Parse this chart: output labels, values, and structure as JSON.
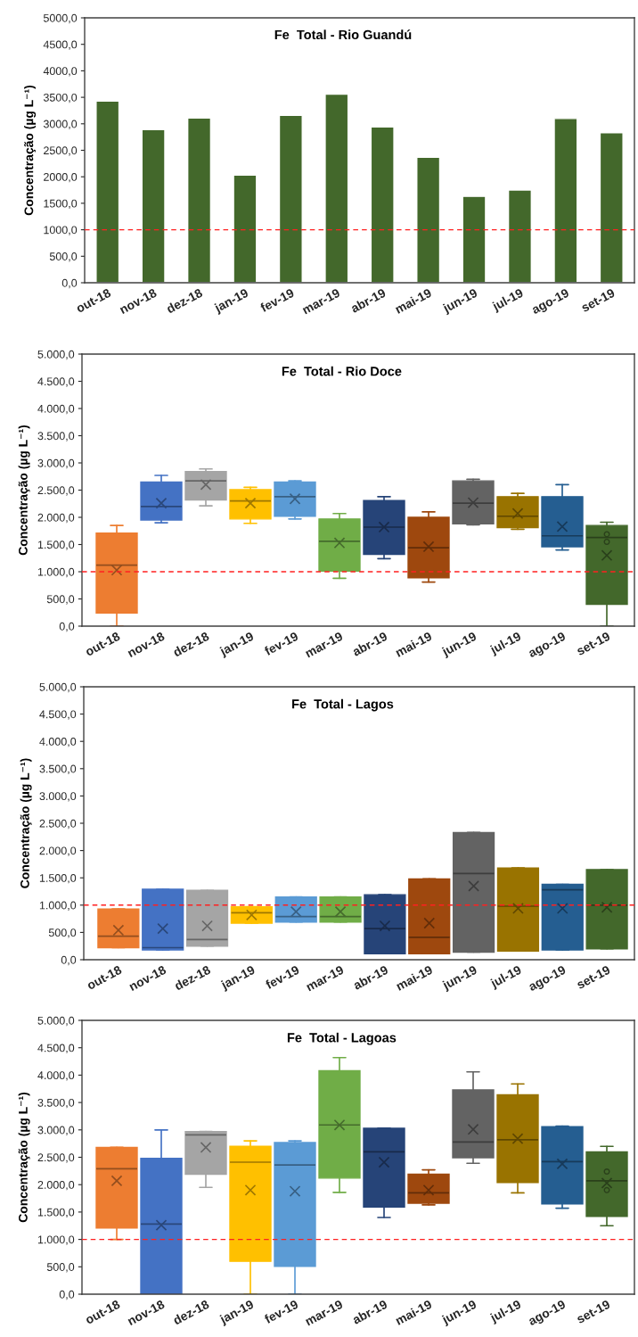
{
  "chart_data": [
    {
      "type": "bar",
      "title": "Fe  Total - Rio Guandú",
      "ylabel": "Concentração (µg L⁻¹)",
      "categories": [
        "out-18",
        "nov-18",
        "dez-18",
        "jan-19",
        "fev-19",
        "mar-19",
        "abr-19",
        "mai-19",
        "jun-19",
        "jul-19",
        "ago-19",
        "set-19"
      ],
      "values": [
        3430,
        2890,
        3110,
        2030,
        3160,
        3560,
        2940,
        2370,
        1630,
        1750,
        3100,
        2830
      ],
      "color": "#43682b",
      "ylim": [
        0,
        5000
      ],
      "yticks": [
        {
          "value": 0,
          "label": "0,0"
        },
        {
          "value": 500,
          "label": "500,0"
        },
        {
          "value": 1000,
          "label": "1000,0"
        },
        {
          "value": 1500,
          "label": "1500,0"
        },
        {
          "value": 2000,
          "label": "2000,0"
        },
        {
          "value": 2500,
          "label": "2500,0"
        },
        {
          "value": 3000,
          "label": "3000,0"
        },
        {
          "value": 3500,
          "label": "3500,0"
        },
        {
          "value": 4000,
          "label": "4000,0"
        },
        {
          "value": 4500,
          "label": "4500,0"
        },
        {
          "value": 5000,
          "label": "5000,0"
        }
      ],
      "ref_lines": [
        {
          "axis": "y",
          "value": 1000,
          "color": "#ff2020",
          "line_style": "dashed"
        }
      ]
    },
    {
      "type": "box",
      "title": "Fe  Total - Rio Doce",
      "ylabel": "Concentração (µg L⁻¹)",
      "categories": [
        "out-18",
        "nov-18",
        "dez-18",
        "jan-19",
        "fev-19",
        "mar-19",
        "abr-19",
        "mai-19",
        "jun-19",
        "jul-19",
        "ago-19",
        "set-19"
      ],
      "colors": [
        "#ed7d31",
        "#4472c4",
        "#a5a5a5",
        "#ffc000",
        "#5b9bd5",
        "#70ad47",
        "#264478",
        "#9e480e",
        "#636363",
        "#997300",
        "#255e91",
        "#43682b"
      ],
      "boxes": [
        {
          "low": 0,
          "q1": 240,
          "median": 1120,
          "q3": 1710,
          "high": 1850,
          "mean": 1030
        },
        {
          "low": 1900,
          "q1": 1950,
          "median": 2200,
          "q3": 2650,
          "high": 2770,
          "mean": 2260
        },
        {
          "low": 2210,
          "q1": 2320,
          "median": 2670,
          "q3": 2840,
          "high": 2890,
          "mean": 2600
        },
        {
          "low": 1890,
          "q1": 1970,
          "median": 2300,
          "q3": 2510,
          "high": 2550,
          "mean": 2260
        },
        {
          "low": 1970,
          "q1": 2020,
          "median": 2380,
          "q3": 2650,
          "high": 2670,
          "mean": 2340
        },
        {
          "low": 880,
          "q1": 1010,
          "median": 1560,
          "q3": 1970,
          "high": 2070,
          "mean": 1530
        },
        {
          "low": 1240,
          "q1": 1320,
          "median": 1820,
          "q3": 2310,
          "high": 2380,
          "mean": 1820
        },
        {
          "low": 810,
          "q1": 890,
          "median": 1440,
          "q3": 2000,
          "high": 2100,
          "mean": 1460
        },
        {
          "low": 1860,
          "q1": 1880,
          "median": 2260,
          "q3": 2670,
          "high": 2700,
          "mean": 2270
        },
        {
          "low": 1780,
          "q1": 1810,
          "median": 2020,
          "q3": 2380,
          "high": 2440,
          "mean": 2070
        },
        {
          "low": 1400,
          "q1": 1460,
          "median": 1660,
          "q3": 2380,
          "high": 2600,
          "mean": 1830
        },
        {
          "low": 0,
          "q1": 400,
          "median": 1630,
          "q3": 1850,
          "high": 1910,
          "mean": 1300,
          "outliers": [
            1690,
            1550
          ]
        }
      ],
      "ylim": [
        0,
        5000
      ],
      "yticks": [
        {
          "value": 0,
          "label": "0,0"
        },
        {
          "value": 500,
          "label": "500,0"
        },
        {
          "value": 1000,
          "label": "1.000,0"
        },
        {
          "value": 1500,
          "label": "1.500,0"
        },
        {
          "value": 2000,
          "label": "2.000,0"
        },
        {
          "value": 2500,
          "label": "2.500,0"
        },
        {
          "value": 3000,
          "label": "3.000,0"
        },
        {
          "value": 3500,
          "label": "3.500,0"
        },
        {
          "value": 4000,
          "label": "4.000,0"
        },
        {
          "value": 4500,
          "label": "4.500,0"
        },
        {
          "value": 5000,
          "label": "5.000,0"
        }
      ],
      "ref_lines": [
        {
          "axis": "y",
          "value": 1000,
          "color": "#ff2020",
          "line_style": "dashed"
        }
      ]
    },
    {
      "type": "box",
      "title": "Fe  Total - Lagos",
      "ylabel": "Concentração (µg L⁻¹)",
      "categories": [
        "out-18",
        "nov-18",
        "dez-18",
        "jan-19",
        "fev-19",
        "mar-19",
        "abr-19",
        "mai-19",
        "jun-19",
        "jul-19",
        "ago-19",
        "set-19"
      ],
      "colors": [
        "#ed7d31",
        "#4472c4",
        "#a5a5a5",
        "#ffc000",
        "#5b9bd5",
        "#70ad47",
        "#264478",
        "#9e480e",
        "#636363",
        "#997300",
        "#255e91",
        "#43682b"
      ],
      "boxes": [
        {
          "low": 220,
          "q1": 220,
          "median": 430,
          "q3": 930,
          "high": 930,
          "mean": 540
        },
        {
          "low": 180,
          "q1": 180,
          "median": 220,
          "q3": 1290,
          "high": 1290,
          "mean": 570
        },
        {
          "low": 250,
          "q1": 250,
          "median": 370,
          "q3": 1270,
          "high": 1270,
          "mean": 620
        },
        {
          "low": 670,
          "q1": 670,
          "median": 860,
          "q3": 970,
          "high": 970,
          "mean": 820
        },
        {
          "low": 690,
          "q1": 690,
          "median": 790,
          "q3": 1150,
          "high": 1150,
          "mean": 880
        },
        {
          "low": 690,
          "q1": 690,
          "median": 790,
          "q3": 1150,
          "high": 1150,
          "mean": 880
        },
        {
          "low": 110,
          "q1": 110,
          "median": 570,
          "q3": 1190,
          "high": 1190,
          "mean": 620
        },
        {
          "low": 110,
          "q1": 110,
          "median": 410,
          "q3": 1480,
          "high": 1480,
          "mean": 670
        },
        {
          "low": 140,
          "q1": 140,
          "median": 1580,
          "q3": 2330,
          "high": 2330,
          "mean": 1350
        },
        {
          "low": 160,
          "q1": 160,
          "median": 980,
          "q3": 1680,
          "high": 1680,
          "mean": 940
        },
        {
          "low": 180,
          "q1": 180,
          "median": 1280,
          "q3": 1380,
          "high": 1380,
          "mean": 940
        },
        {
          "low": 200,
          "q1": 200,
          "median": 1000,
          "q3": 1650,
          "high": 1650,
          "mean": 960
        }
      ],
      "ylim": [
        0,
        5000
      ],
      "yticks": [
        {
          "value": 0,
          "label": "0,0"
        },
        {
          "value": 500,
          "label": "500,0"
        },
        {
          "value": 1000,
          "label": "1.000,0"
        },
        {
          "value": 1500,
          "label": "1.500,0"
        },
        {
          "value": 2000,
          "label": "2.000,0"
        },
        {
          "value": 2500,
          "label": "2.500,0"
        },
        {
          "value": 3000,
          "label": "3.000,0"
        },
        {
          "value": 3500,
          "label": "3.500,0"
        },
        {
          "value": 4000,
          "label": "4.000,0"
        },
        {
          "value": 4500,
          "label": "4.500,0"
        },
        {
          "value": 5000,
          "label": "5.000,0"
        }
      ],
      "ref_lines": [
        {
          "axis": "y",
          "value": 1000,
          "color": "#ff2020",
          "line_style": "dashed"
        }
      ]
    },
    {
      "type": "box",
      "title": "Fe  Total - Lagoas",
      "ylabel": "Concentração (µg L⁻¹)",
      "categories": [
        "out-18",
        "nov-18",
        "dez-18",
        "jan-19",
        "fev-19",
        "mar-19",
        "abr-19",
        "mai-19",
        "jun-19",
        "jul-19",
        "ago-19",
        "set-19"
      ],
      "colors": [
        "#ed7d31",
        "#4472c4",
        "#a5a5a5",
        "#ffc000",
        "#5b9bd5",
        "#70ad47",
        "#264478",
        "#9e480e",
        "#636363",
        "#997300",
        "#255e91",
        "#43682b"
      ],
      "boxes": [
        {
          "low": 1000,
          "q1": 1210,
          "median": 2290,
          "q3": 2680,
          "high": 2680,
          "mean": 2070
        },
        {
          "low": 10,
          "q1": 10,
          "median": 1280,
          "q3": 2480,
          "high": 3000,
          "mean": 1260
        },
        {
          "low": 1950,
          "q1": 2190,
          "median": 2910,
          "q3": 2970,
          "high": 2970,
          "mean": 2680
        },
        {
          "low": 0,
          "q1": 600,
          "median": 2410,
          "q3": 2700,
          "high": 2800,
          "mean": 1900
        },
        {
          "low": 0,
          "q1": 510,
          "median": 2360,
          "q3": 2770,
          "high": 2800,
          "mean": 1880
        },
        {
          "low": 1860,
          "q1": 2120,
          "median": 3090,
          "q3": 4080,
          "high": 4320,
          "mean": 3090
        },
        {
          "low": 1400,
          "q1": 1590,
          "median": 2600,
          "q3": 3030,
          "high": 3030,
          "mean": 2410
        },
        {
          "low": 1630,
          "q1": 1660,
          "median": 1850,
          "q3": 2190,
          "high": 2270,
          "mean": 1900
        },
        {
          "low": 2390,
          "q1": 2490,
          "median": 2780,
          "q3": 3730,
          "high": 4060,
          "mean": 3010
        },
        {
          "low": 1850,
          "q1": 2040,
          "median": 2820,
          "q3": 3640,
          "high": 3840,
          "mean": 2840
        },
        {
          "low": 1570,
          "q1": 1650,
          "median": 2420,
          "q3": 3060,
          "high": 3070,
          "mean": 2380
        },
        {
          "low": 1250,
          "q1": 1420,
          "median": 2070,
          "q3": 2600,
          "high": 2700,
          "mean": 2030,
          "outliers": [
            2240,
            1900
          ]
        }
      ],
      "ylim": [
        0,
        5000
      ],
      "yticks": [
        {
          "value": 0,
          "label": "0,0"
        },
        {
          "value": 500,
          "label": "500,0"
        },
        {
          "value": 1000,
          "label": "1.000,0"
        },
        {
          "value": 1500,
          "label": "1.500,0"
        },
        {
          "value": 2000,
          "label": "2.000,0"
        },
        {
          "value": 2500,
          "label": "2.500,0"
        },
        {
          "value": 3000,
          "label": "3.000,0"
        },
        {
          "value": 3500,
          "label": "3.500,0"
        },
        {
          "value": 4000,
          "label": "4.000,0"
        },
        {
          "value": 4500,
          "label": "4.500,0"
        },
        {
          "value": 5000,
          "label": "5.000,0"
        }
      ],
      "ref_lines": [
        {
          "axis": "y",
          "value": 1000,
          "color": "#ff2020",
          "line_style": "dashed"
        }
      ]
    }
  ]
}
